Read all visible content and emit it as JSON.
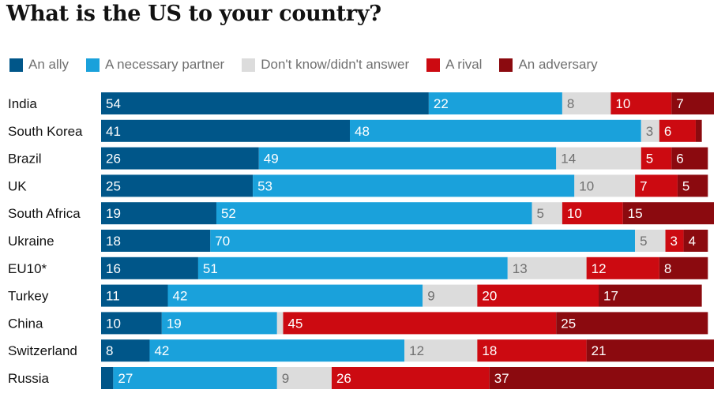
{
  "chart_data": {
    "type": "bar",
    "stacked": true,
    "orientation": "horizontal",
    "title": "What is the US to your country?",
    "legend_position": "top-left",
    "categories": [
      "India",
      "South Korea",
      "Brazil",
      "UK",
      "South Africa",
      "Ukraine",
      "EU10*",
      "Turkey",
      "China",
      "Switzerland",
      "Russia"
    ],
    "series": [
      {
        "name": "An ally",
        "color": "#005689",
        "label_color": "#ffffff",
        "values": [
          54,
          41,
          26,
          25,
          19,
          18,
          16,
          11,
          10,
          8,
          2
        ]
      },
      {
        "name": "A necessary partner",
        "color": "#1aa1db",
        "label_color": "#ffffff",
        "values": [
          22,
          48,
          49,
          53,
          52,
          70,
          51,
          42,
          19,
          42,
          27
        ]
      },
      {
        "name": "Don't know/didn't answer",
        "color": "#dcdcdc",
        "label_color": "#707070",
        "values": [
          8,
          3,
          14,
          10,
          5,
          5,
          13,
          9,
          1,
          12,
          9
        ]
      },
      {
        "name": "A rival",
        "color": "#cc0a11",
        "label_color": "#ffffff",
        "values": [
          10,
          6,
          5,
          7,
          10,
          3,
          12,
          20,
          45,
          18,
          26
        ]
      },
      {
        "name": "An adversary",
        "color": "#8b0a0f",
        "label_color": "#ffffff",
        "values": [
          7,
          1,
          6,
          5,
          15,
          4,
          8,
          17,
          25,
          21,
          37
        ]
      }
    ],
    "labels_shown": [
      [
        "54",
        "22",
        "8",
        "10",
        "7"
      ],
      [
        "41",
        "48",
        "3",
        "6",
        ""
      ],
      [
        "26",
        "49",
        "14",
        "5",
        "6"
      ],
      [
        "25",
        "53",
        "10",
        "7",
        "5"
      ],
      [
        "19",
        "52",
        "5",
        "10",
        "15"
      ],
      [
        "18",
        "70",
        "5",
        "3",
        "4"
      ],
      [
        "16",
        "51",
        "13",
        "12",
        "8"
      ],
      [
        "11",
        "42",
        "9",
        "20",
        "17"
      ],
      [
        "10",
        "19",
        "",
        "45",
        "25"
      ],
      [
        "8",
        "42",
        "12",
        "18",
        "21"
      ],
      [
        "",
        "27",
        "9",
        "26",
        "37"
      ]
    ],
    "xlim": [
      0,
      100
    ],
    "grid": false
  }
}
